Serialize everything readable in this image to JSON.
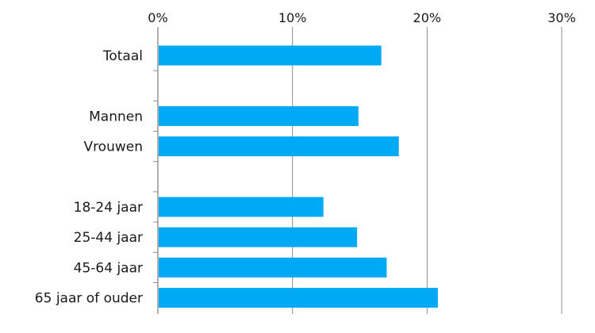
{
  "chart_data": {
    "type": "bar",
    "orientation": "horizontal",
    "categories": [
      "Totaal",
      "",
      "Mannen",
      "Vrouwen",
      "",
      "18-24 jaar",
      "25-44 jaar",
      "45-64 jaar",
      "65 jaar of ouder"
    ],
    "values": [
      16.6,
      null,
      14.9,
      17.9,
      null,
      12.3,
      14.8,
      17.0,
      20.8
    ],
    "x_ticks": [
      "0%",
      "10%",
      "20%",
      "30%"
    ],
    "xlim": [
      0,
      30
    ],
    "unit": "%",
    "x_axis_position": "top",
    "grid": true,
    "bar_color": "#00A9F4",
    "grid_color": "#8c8c8c"
  }
}
